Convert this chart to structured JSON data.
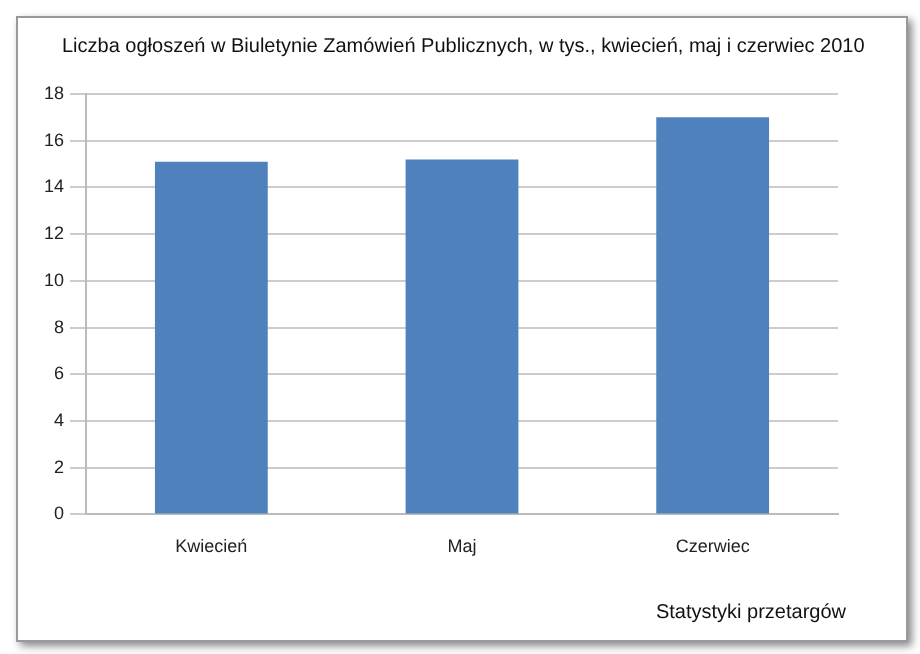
{
  "chart_data": {
    "type": "bar",
    "title": "Liczba ogłoszeń w Biuletynie Zamówień Publicznych, w tys., kwiecień, maj i czerwiec 2010",
    "categories": [
      "Kwiecień",
      "Maj",
      "Czerwiec"
    ],
    "values": [
      15.1,
      15.2,
      17.0
    ],
    "color": "#4f81bd",
    "ylim": [
      0,
      18
    ],
    "yticks": [
      0,
      2,
      4,
      6,
      8,
      10,
      12,
      14,
      16,
      18
    ],
    "grid": "y",
    "annotations": [
      "Statystyki przetargów"
    ]
  }
}
